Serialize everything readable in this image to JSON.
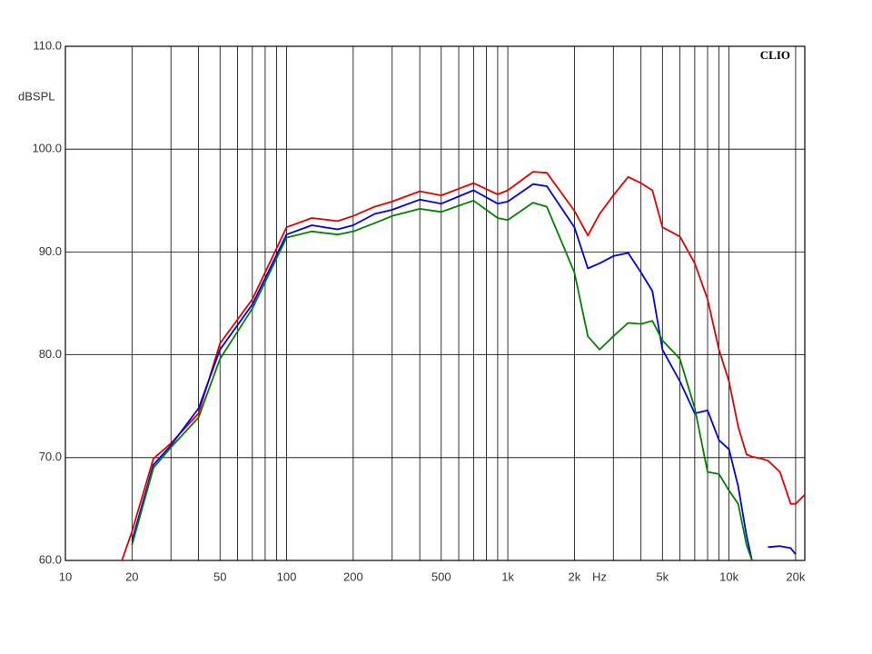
{
  "chart_data": {
    "type": "line",
    "brand": "CLIO",
    "y_label": "dBSPL",
    "x_unit": "Hz",
    "x_scale": "log",
    "grid": true,
    "x": [
      18,
      20,
      25,
      30,
      40,
      50,
      70,
      100,
      130,
      170,
      200,
      250,
      300,
      400,
      500,
      700,
      900,
      1000,
      1300,
      1500,
      2000,
      2300,
      2600,
      3000,
      3500,
      4000,
      4500,
      5000,
      6000,
      7000,
      8000,
      9000,
      10000,
      11000,
      12000,
      12700,
      14000,
      15000,
      17000,
      19000,
      20000,
      22000
    ],
    "series": [
      {
        "name": "red",
        "color": "#e00000",
        "values": [
          60.0,
          62.8,
          69.9,
          71.4,
          74.3,
          81.1,
          85.4,
          92.4,
          93.3,
          93.0,
          93.5,
          94.4,
          94.9,
          95.9,
          95.5,
          96.7,
          95.6,
          96.0,
          97.8,
          97.7,
          94.0,
          91.6,
          93.7,
          95.5,
          97.3,
          96.7,
          96.0,
          92.4,
          91.5,
          88.9,
          85.4,
          80.5,
          77.4,
          73.0,
          70.3,
          70.1,
          69.9,
          69.7,
          68.6,
          65.5,
          65.5,
          66.4
        ]
      },
      {
        "name": "blue",
        "color": "#0000e0",
        "values": [
          null,
          61.9,
          69.3,
          71.2,
          74.8,
          80.5,
          84.9,
          91.7,
          92.6,
          92.2,
          92.6,
          93.7,
          94.1,
          95.1,
          94.7,
          96.0,
          94.7,
          94.9,
          96.6,
          96.4,
          92.4,
          88.4,
          88.9,
          89.6,
          89.9,
          88.0,
          86.2,
          80.5,
          77.4,
          74.3,
          74.6,
          71.7,
          70.8,
          67.2,
          62.4,
          60.0,
          null,
          61.3,
          61.4,
          61.2,
          60.6,
          null
        ]
      },
      {
        "name": "green",
        "color": "#008000",
        "values": [
          null,
          61.5,
          69.0,
          71.0,
          73.9,
          79.6,
          84.5,
          91.4,
          92.0,
          91.7,
          92.0,
          92.8,
          93.5,
          94.2,
          93.9,
          95.0,
          93.3,
          93.1,
          94.8,
          94.4,
          88.0,
          81.8,
          80.5,
          81.8,
          83.1,
          83.0,
          83.3,
          81.4,
          79.6,
          74.8,
          68.6,
          68.4,
          66.8,
          65.5,
          61.5,
          60.0,
          null,
          null,
          null,
          null,
          null,
          null
        ]
      }
    ],
    "xlim": [
      10,
      22000
    ],
    "ylim": [
      60,
      110
    ],
    "xticks": [
      10,
      20,
      50,
      100,
      200,
      500,
      {
        "value": 1000,
        "label": "1k"
      },
      {
        "value": 2000,
        "label": "2k"
      },
      {
        "value": 5000,
        "label": "5k"
      },
      {
        "value": 10000,
        "label": "10k"
      },
      {
        "value": 20000,
        "label": "20k"
      }
    ],
    "x_minor_gridlines": [
      30,
      40,
      60,
      70,
      80,
      90,
      300,
      400,
      600,
      700,
      800,
      900,
      3000,
      4000,
      6000,
      7000,
      8000,
      9000
    ],
    "yticks": [
      {
        "value": 60,
        "label": "60.0"
      },
      {
        "value": 70,
        "label": "70.0"
      },
      {
        "value": 80,
        "label": "80.0"
      },
      {
        "value": 90,
        "label": "90.0"
      },
      {
        "value": 100,
        "label": "100.0"
      },
      {
        "value": 110,
        "label": "110.0"
      }
    ]
  }
}
